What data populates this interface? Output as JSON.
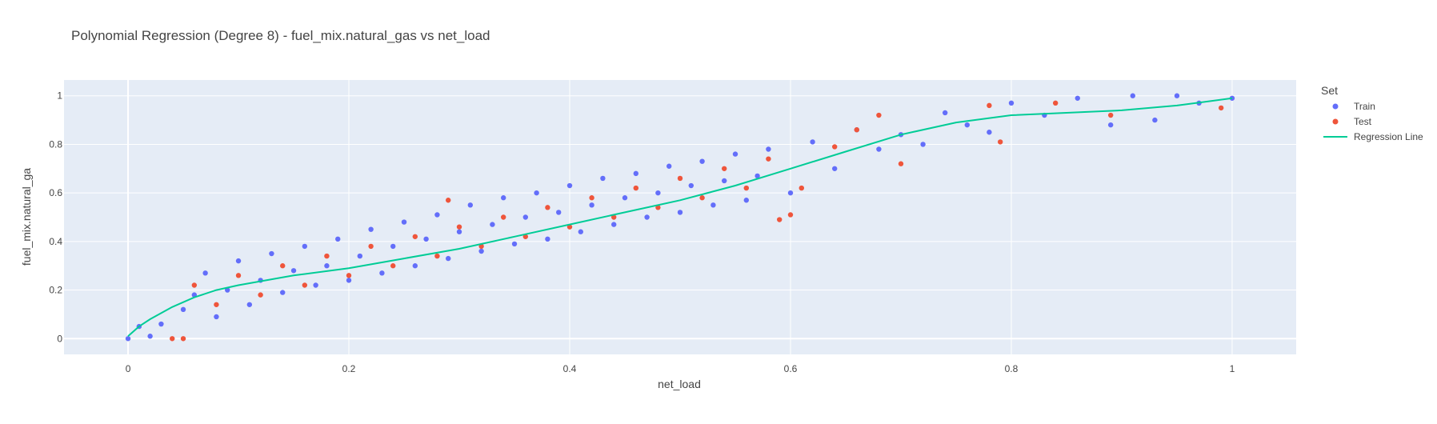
{
  "chart_data": {
    "type": "scatter",
    "title": "Polynomial Regression (Degree 8) - fuel_mix.natural_gas vs net_load",
    "xlabel": "net_load",
    "ylabel": "fuel_mix.natural_ga",
    "xlim": [
      -0.058,
      1.058
    ],
    "ylim": [
      -0.065,
      1.065
    ],
    "x_ticks": [
      0,
      0.2,
      0.4,
      0.6,
      0.8,
      1
    ],
    "x_tick_labels": [
      "0",
      "0.2",
      "0.4",
      "0.6",
      "0.8",
      "1"
    ],
    "y_ticks": [
      0,
      0.2,
      0.4,
      0.6,
      0.8,
      1
    ],
    "y_tick_labels": [
      "0",
      "0.2",
      "0.4",
      "0.6",
      "0.8",
      "1"
    ],
    "grid": true,
    "plot_background": "#E5ECF6",
    "legend": {
      "title": "Set",
      "placement": "right",
      "entries": [
        {
          "name": "Train",
          "kind": "marker",
          "color": "#636EFA"
        },
        {
          "name": "Test",
          "kind": "marker",
          "color": "#EF553B"
        },
        {
          "name": "Regression Line",
          "kind": "line",
          "color": "#00CC96"
        }
      ]
    },
    "series": [
      {
        "name": "Train",
        "mode": "markers",
        "color": "#636EFA",
        "points": [
          [
            0.0,
            0.0
          ],
          [
            0.01,
            0.05
          ],
          [
            0.02,
            0.01
          ],
          [
            0.03,
            0.06
          ],
          [
            0.05,
            0.12
          ],
          [
            0.06,
            0.18
          ],
          [
            0.07,
            0.27
          ],
          [
            0.08,
            0.09
          ],
          [
            0.09,
            0.2
          ],
          [
            0.1,
            0.32
          ],
          [
            0.11,
            0.14
          ],
          [
            0.12,
            0.24
          ],
          [
            0.13,
            0.35
          ],
          [
            0.14,
            0.19
          ],
          [
            0.15,
            0.28
          ],
          [
            0.16,
            0.38
          ],
          [
            0.17,
            0.22
          ],
          [
            0.18,
            0.3
          ],
          [
            0.19,
            0.41
          ],
          [
            0.2,
            0.24
          ],
          [
            0.21,
            0.34
          ],
          [
            0.22,
            0.45
          ],
          [
            0.23,
            0.27
          ],
          [
            0.24,
            0.38
          ],
          [
            0.25,
            0.48
          ],
          [
            0.26,
            0.3
          ],
          [
            0.27,
            0.41
          ],
          [
            0.28,
            0.51
          ],
          [
            0.29,
            0.33
          ],
          [
            0.3,
            0.44
          ],
          [
            0.31,
            0.55
          ],
          [
            0.32,
            0.36
          ],
          [
            0.33,
            0.47
          ],
          [
            0.34,
            0.58
          ],
          [
            0.35,
            0.39
          ],
          [
            0.36,
            0.5
          ],
          [
            0.37,
            0.6
          ],
          [
            0.38,
            0.41
          ],
          [
            0.39,
            0.52
          ],
          [
            0.4,
            0.63
          ],
          [
            0.41,
            0.44
          ],
          [
            0.42,
            0.55
          ],
          [
            0.43,
            0.66
          ],
          [
            0.44,
            0.47
          ],
          [
            0.45,
            0.58
          ],
          [
            0.46,
            0.68
          ],
          [
            0.47,
            0.5
          ],
          [
            0.48,
            0.6
          ],
          [
            0.49,
            0.71
          ],
          [
            0.5,
            0.52
          ],
          [
            0.51,
            0.63
          ],
          [
            0.52,
            0.73
          ],
          [
            0.53,
            0.55
          ],
          [
            0.54,
            0.65
          ],
          [
            0.55,
            0.76
          ],
          [
            0.56,
            0.57
          ],
          [
            0.57,
            0.67
          ],
          [
            0.58,
            0.78
          ],
          [
            0.6,
            0.6
          ],
          [
            0.62,
            0.81
          ],
          [
            0.64,
            0.7
          ],
          [
            0.66,
            0.86
          ],
          [
            0.68,
            0.78
          ],
          [
            0.7,
            0.84
          ],
          [
            0.72,
            0.8
          ],
          [
            0.74,
            0.93
          ],
          [
            0.76,
            0.88
          ],
          [
            0.78,
            0.85
          ],
          [
            0.8,
            0.97
          ],
          [
            0.83,
            0.92
          ],
          [
            0.86,
            0.99
          ],
          [
            0.89,
            0.88
          ],
          [
            0.91,
            1.0
          ],
          [
            0.93,
            0.9
          ],
          [
            0.95,
            1.0
          ],
          [
            0.97,
            0.97
          ],
          [
            1.0,
            0.99
          ]
        ]
      },
      {
        "name": "Test",
        "mode": "markers",
        "color": "#EF553B",
        "points": [
          [
            0.04,
            0.0
          ],
          [
            0.05,
            0.0
          ],
          [
            0.06,
            0.22
          ],
          [
            0.08,
            0.14
          ],
          [
            0.1,
            0.26
          ],
          [
            0.12,
            0.18
          ],
          [
            0.14,
            0.3
          ],
          [
            0.16,
            0.22
          ],
          [
            0.18,
            0.34
          ],
          [
            0.2,
            0.26
          ],
          [
            0.22,
            0.38
          ],
          [
            0.24,
            0.3
          ],
          [
            0.26,
            0.42
          ],
          [
            0.28,
            0.34
          ],
          [
            0.29,
            0.57
          ],
          [
            0.3,
            0.46
          ],
          [
            0.32,
            0.38
          ],
          [
            0.34,
            0.5
          ],
          [
            0.36,
            0.42
          ],
          [
            0.38,
            0.54
          ],
          [
            0.4,
            0.46
          ],
          [
            0.42,
            0.58
          ],
          [
            0.44,
            0.5
          ],
          [
            0.46,
            0.62
          ],
          [
            0.48,
            0.54
          ],
          [
            0.5,
            0.66
          ],
          [
            0.52,
            0.58
          ],
          [
            0.54,
            0.7
          ],
          [
            0.56,
            0.62
          ],
          [
            0.58,
            0.74
          ],
          [
            0.59,
            0.49
          ],
          [
            0.6,
            0.51
          ],
          [
            0.61,
            0.62
          ],
          [
            0.64,
            0.79
          ],
          [
            0.66,
            0.86
          ],
          [
            0.68,
            0.92
          ],
          [
            0.7,
            0.72
          ],
          [
            0.78,
            0.96
          ],
          [
            0.79,
            0.81
          ],
          [
            0.84,
            0.97
          ],
          [
            0.89,
            0.92
          ],
          [
            0.99,
            0.95
          ]
        ]
      },
      {
        "name": "Regression Line",
        "mode": "lines",
        "color": "#00CC96",
        "points": [
          [
            0.0,
            0.01
          ],
          [
            0.01,
            0.05
          ],
          [
            0.02,
            0.08
          ],
          [
            0.04,
            0.13
          ],
          [
            0.06,
            0.17
          ],
          [
            0.08,
            0.2
          ],
          [
            0.1,
            0.22
          ],
          [
            0.15,
            0.26
          ],
          [
            0.2,
            0.29
          ],
          [
            0.25,
            0.33
          ],
          [
            0.3,
            0.37
          ],
          [
            0.35,
            0.42
          ],
          [
            0.4,
            0.47
          ],
          [
            0.45,
            0.52
          ],
          [
            0.5,
            0.57
          ],
          [
            0.55,
            0.63
          ],
          [
            0.6,
            0.7
          ],
          [
            0.65,
            0.77
          ],
          [
            0.7,
            0.84
          ],
          [
            0.75,
            0.89
          ],
          [
            0.8,
            0.92
          ],
          [
            0.85,
            0.93
          ],
          [
            0.9,
            0.94
          ],
          [
            0.95,
            0.96
          ],
          [
            1.0,
            0.99
          ]
        ]
      }
    ]
  }
}
